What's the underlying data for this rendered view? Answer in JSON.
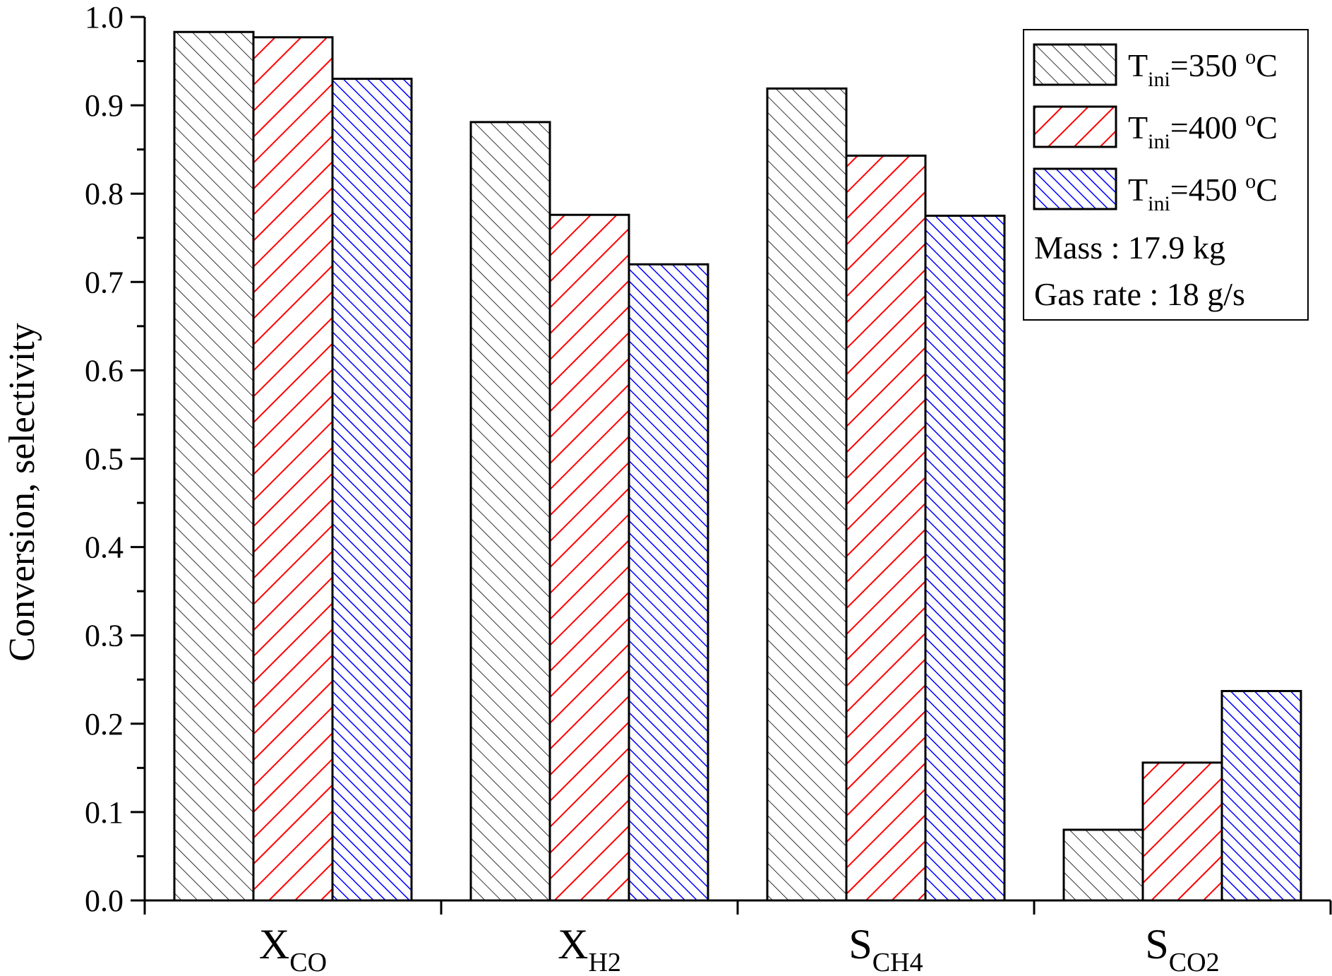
{
  "chart_data": {
    "type": "bar",
    "title": "",
    "xlabel": "",
    "ylabel": "Conversion, selectivity",
    "ylim": [
      0,
      1.0
    ],
    "yticks": [
      "0.0",
      "0.1",
      "0.2",
      "0.3",
      "0.4",
      "0.5",
      "0.6",
      "0.7",
      "0.8",
      "0.9",
      "1.0"
    ],
    "grid": false,
    "legend_position": "top-right",
    "categories": [
      {
        "main": "X",
        "sub": "CO"
      },
      {
        "main": "X",
        "sub": "H2"
      },
      {
        "main": "S",
        "sub": "CH4"
      },
      {
        "main": "S",
        "sub": "CO2"
      }
    ],
    "series": [
      {
        "label_main": "T",
        "label_sub": "ini",
        "label_rest": "=350 ",
        "label_sup": "o",
        "label_unit": "C",
        "color": "#000000",
        "fill": "#ffffff",
        "values": [
          0.983,
          0.881,
          0.919,
          0.08
        ]
      },
      {
        "label_main": "T",
        "label_sub": "ini",
        "label_rest": "=400 ",
        "label_sup": "o",
        "label_unit": "C",
        "color": "#ff0000",
        "fill": "#ffffff",
        "values": [
          0.977,
          0.776,
          0.843,
          0.156
        ]
      },
      {
        "label_main": "T",
        "label_sub": "ini",
        "label_rest": "=450 ",
        "label_sup": "o",
        "label_unit": "C",
        "color": "#0000ff",
        "fill": "#ffffff",
        "values": [
          0.93,
          0.72,
          0.775,
          0.237
        ]
      }
    ],
    "annotations": [
      "Mass : 17.9 kg",
      "Gas rate : 18 g/s"
    ]
  }
}
